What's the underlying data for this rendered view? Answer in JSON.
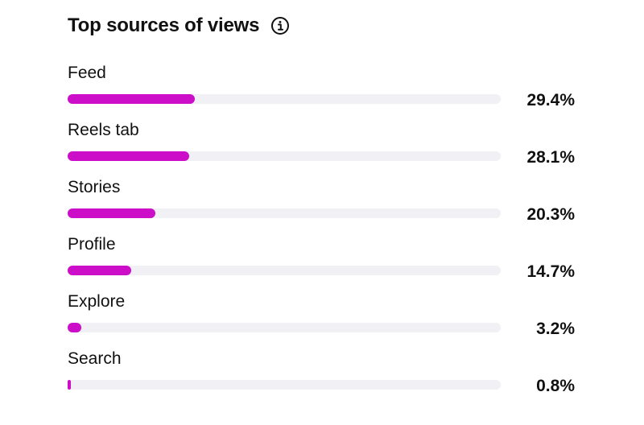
{
  "header": {
    "title": "Top sources of views",
    "info_icon": "info-icon"
  },
  "colors": {
    "bar_fill": "#cc0ec8",
    "bar_track": "#f0f0f5"
  },
  "chart_data": {
    "type": "bar",
    "orientation": "horizontal",
    "title": "Top sources of views",
    "categories": [
      "Feed",
      "Reels tab",
      "Stories",
      "Profile",
      "Explore",
      "Search"
    ],
    "values": [
      29.4,
      28.1,
      20.3,
      14.7,
      3.2,
      0.8
    ],
    "value_labels": [
      "29.4%",
      "28.1%",
      "20.3%",
      "14.7%",
      "3.2%",
      "0.8%"
    ],
    "unit": "%",
    "xlim": [
      0,
      100
    ],
    "grid": false
  }
}
